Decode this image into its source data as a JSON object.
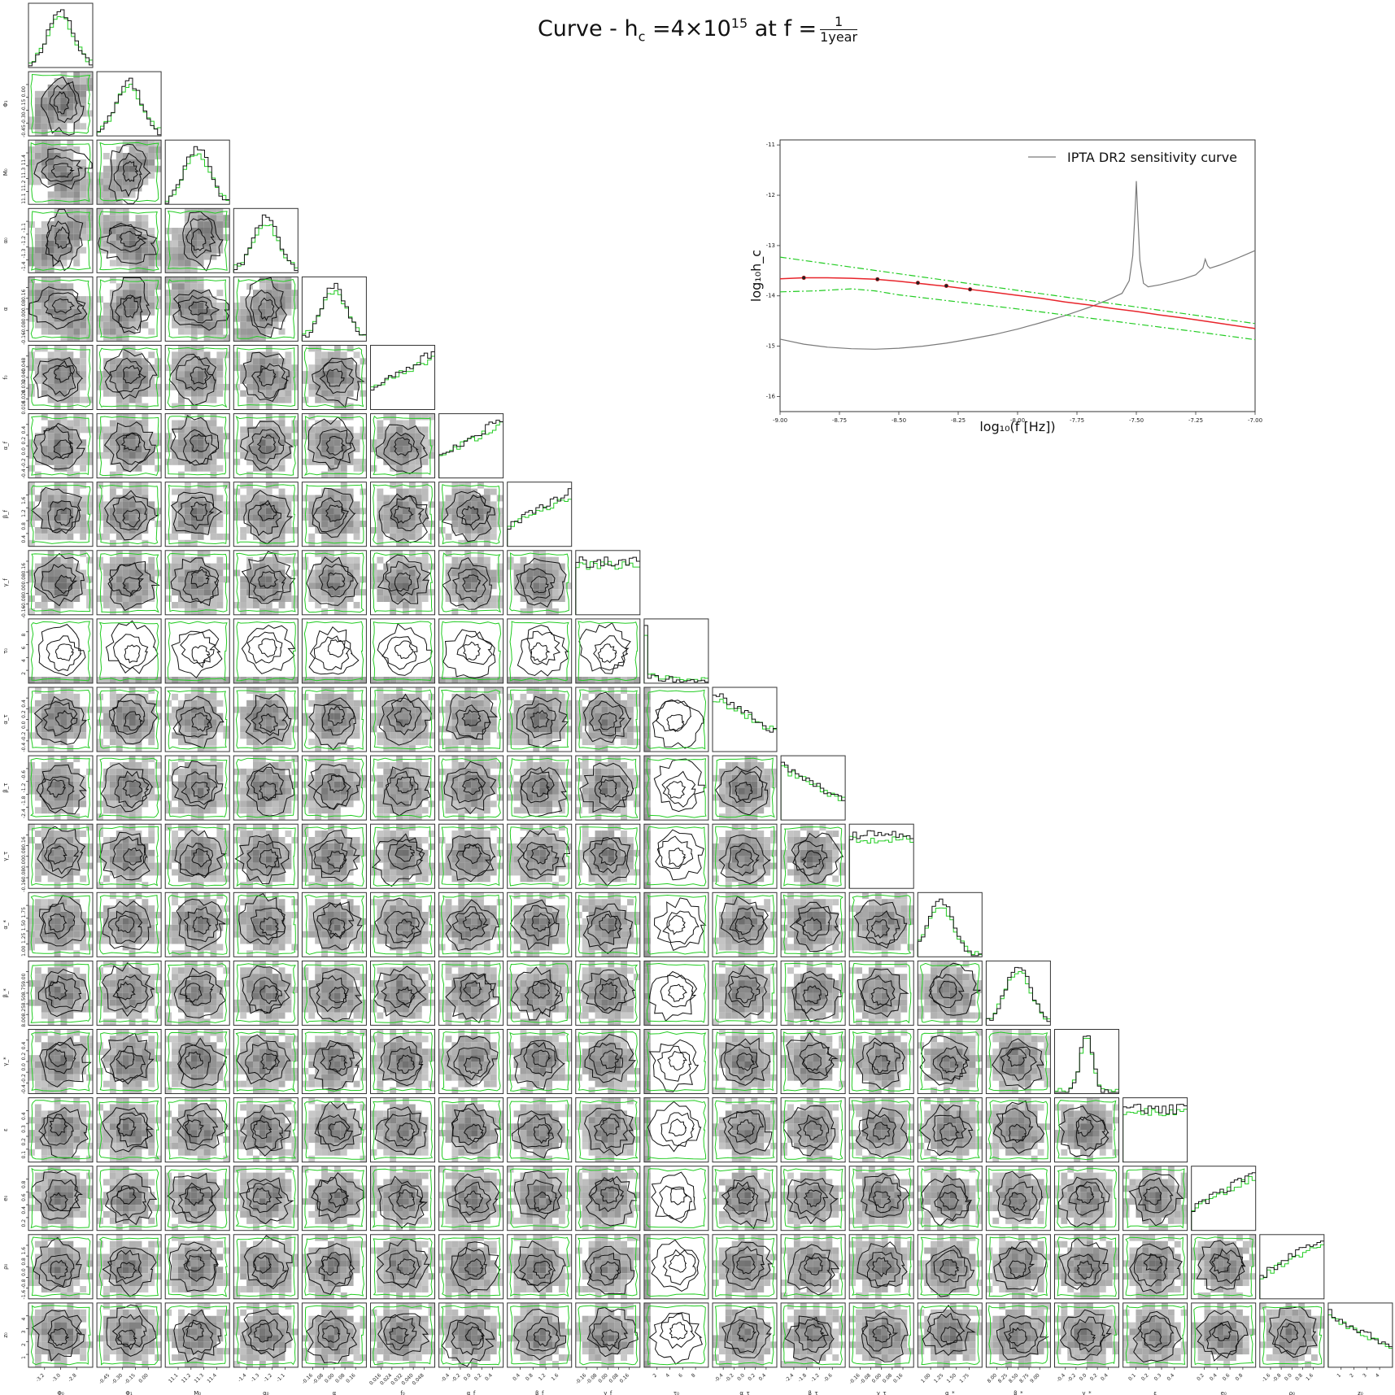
{
  "title": {
    "prefix": "Curve - h",
    "prefix_sub": "c",
    "mid": " =4×10",
    "mid_sup": "15",
    "suffix": " at f =",
    "frac_num": "1",
    "frac_den": "1year"
  },
  "colors": {
    "contour": "#111111",
    "prior": "#22cc22",
    "red_curve": "#e8242b",
    "sensitivity": "#7a7a7a",
    "frame": "#333333"
  },
  "chart_data": [
    {
      "type": "corner",
      "description_of_series": [
        "posterior (black)",
        "prior (green)"
      ],
      "parameters": [
        {
          "label": "Φ₀",
          "ticks": [
            "-3.2",
            "-3.0",
            "-2.8"
          ],
          "range": [
            -3.3,
            -2.7
          ]
        },
        {
          "label": "Φ₁",
          "ticks": [
            "-0.45",
            "-0.30",
            "-0.15",
            "0.00"
          ],
          "range": [
            -0.5,
            0.05
          ]
        },
        {
          "label": "M₀",
          "ticks": [
            "11.1",
            "11.2",
            "11.3",
            "11.4"
          ],
          "range": [
            11.05,
            11.45
          ]
        },
        {
          "label": "α₀",
          "ticks": [
            "-1.4",
            "-1.3",
            "-1.2",
            "-1.1"
          ],
          "range": [
            -1.45,
            -1.05
          ]
        },
        {
          "label": "α",
          "ticks": [
            "-0.16",
            "-0.08",
            "0.00",
            "0.08",
            "0.16"
          ],
          "range": [
            -0.18,
            0.18
          ]
        },
        {
          "label": "f₀",
          "ticks": [
            "0.016",
            "0.024",
            "0.032",
            "0.040",
            "0.048"
          ],
          "range": [
            0.012,
            0.05
          ]
        },
        {
          "label": "α_f",
          "ticks": [
            "-0.4",
            "-0.2",
            "0.0",
            "0.2",
            "0.4"
          ],
          "range": [
            -0.5,
            0.5
          ]
        },
        {
          "label": "β_f",
          "ticks": [
            "0.4",
            "0.8",
            "1.2",
            "1.6"
          ],
          "range": [
            0.0,
            2.0
          ]
        },
        {
          "label": "γ_f",
          "ticks": [
            "-0.16",
            "-0.08",
            "0.00",
            "0.08",
            "0.16"
          ],
          "range": [
            -0.2,
            0.2
          ]
        },
        {
          "label": "τ₀",
          "ticks": [
            "2",
            "4",
            "6",
            "8"
          ],
          "range": [
            0.0,
            10.0
          ]
        },
        {
          "label": "α_τ",
          "ticks": [
            "-0.4",
            "-0.2",
            "0.0",
            "0.2",
            "0.4"
          ],
          "range": [
            -0.5,
            0.5
          ]
        },
        {
          "label": "β_τ",
          "ticks": [
            "-2.4",
            "-1.8",
            "-1.2",
            "-0.6"
          ],
          "range": [
            -3.0,
            0.0
          ]
        },
        {
          "label": "γ_τ",
          "ticks": [
            "-0.16",
            "-0.08",
            "0.00",
            "0.08",
            "0.16"
          ],
          "range": [
            -0.2,
            0.2
          ]
        },
        {
          "label": "α_*",
          "ticks": [
            "1.00",
            "1.25",
            "1.50",
            "1.75"
          ],
          "range": [
            0.9,
            1.9
          ]
        },
        {
          "label": "β_*",
          "ticks": [
            "8.00",
            "8.25",
            "8.50",
            "8.75",
            "9.00"
          ],
          "range": [
            7.9,
            9.1
          ]
        },
        {
          "label": "γ_*",
          "ticks": [
            "-0.4",
            "-0.2",
            "0.0",
            "0.2",
            "0.4"
          ],
          "range": [
            -0.5,
            0.5
          ]
        },
        {
          "label": "ε",
          "ticks": [
            "0.1",
            "0.2",
            "0.3",
            "0.4"
          ],
          "range": [
            0.0,
            0.5
          ]
        },
        {
          "label": "e₀",
          "ticks": [
            "0.2",
            "0.4",
            "0.6",
            "0.8"
          ],
          "range": [
            0.0,
            1.0
          ]
        },
        {
          "label": "ρ₀",
          "ticks": [
            "-1.6",
            "-0.8",
            "0.0",
            "0.8",
            "1.6"
          ],
          "range": [
            -2.0,
            2.0
          ]
        },
        {
          "label": "z₀",
          "ticks": [
            "1",
            "2",
            "3",
            "4"
          ],
          "range": [
            0.5,
            5.0
          ]
        }
      ]
    },
    {
      "type": "line",
      "xlabel": "log₁₀(f [Hz])",
      "ylabel": "log₁₀h_c",
      "xlim": [
        -9.0,
        -7.0
      ],
      "ylim": [
        -16.3,
        -10.9
      ],
      "xticks": [
        "-9.00",
        "-8.75",
        "-8.50",
        "-8.25",
        "-8.00",
        "-7.75",
        "-7.50",
        "-7.25",
        "-7.00"
      ],
      "yticks": [
        "-16",
        "-15",
        "-14",
        "-13",
        "-12",
        "-11"
      ],
      "legend": {
        "label": "IPTA DR2 sensitivity curve",
        "position": "upper right"
      },
      "series": [
        {
          "name": "IPTA DR2 sensitivity curve",
          "color": "#7a7a7a",
          "x": [
            -9.0,
            -8.9,
            -8.8,
            -8.7,
            -8.6,
            -8.5,
            -8.4,
            -8.3,
            -8.2,
            -8.1,
            -8.0,
            -7.9,
            -7.8,
            -7.7,
            -7.62,
            -7.56,
            -7.53,
            -7.515,
            -7.505,
            -7.5,
            -7.495,
            -7.485,
            -7.47,
            -7.45,
            -7.4,
            -7.35,
            -7.3,
            -7.25,
            -7.22,
            -7.21,
            -7.2,
            -7.19,
            -7.15,
            -7.1,
            -7.05,
            -7.0
          ],
          "y": [
            -14.86,
            -14.96,
            -15.02,
            -15.05,
            -15.06,
            -15.04,
            -15.0,
            -14.94,
            -14.86,
            -14.77,
            -14.66,
            -14.53,
            -14.39,
            -14.23,
            -14.08,
            -13.95,
            -13.7,
            -13.2,
            -12.3,
            -11.72,
            -12.3,
            -13.3,
            -13.75,
            -13.82,
            -13.78,
            -13.72,
            -13.66,
            -13.58,
            -13.45,
            -13.27,
            -13.4,
            -13.45,
            -13.39,
            -13.3,
            -13.2,
            -13.1
          ]
        },
        {
          "name": "",
          "color": "#e8242b",
          "x": [
            -9.0,
            -8.9,
            -8.8,
            -8.7,
            -8.6,
            -8.5,
            -8.4,
            -8.3,
            -8.2,
            -8.1,
            -8.0,
            -7.9,
            -7.8,
            -7.7,
            -7.6,
            -7.5,
            -7.4,
            -7.3,
            -7.2,
            -7.1,
            -7.0
          ],
          "y": [
            -13.66,
            -13.64,
            -13.64,
            -13.65,
            -13.67,
            -13.71,
            -13.76,
            -13.81,
            -13.87,
            -13.93,
            -13.99,
            -14.05,
            -14.12,
            -14.18,
            -14.25,
            -14.31,
            -14.38,
            -14.44,
            -14.51,
            -14.58,
            -14.65
          ]
        },
        {
          "name": "",
          "color": "#22cc22",
          "style": "dashdot",
          "x": [
            -9.0,
            -7.0
          ],
          "y": [
            -13.23,
            -14.55
          ]
        },
        {
          "name": "",
          "color": "#22cc22",
          "style": "dashdot",
          "x": [
            -9.0,
            -8.85,
            -8.7,
            -8.6,
            -8.5,
            -8.25,
            -8.0,
            -7.75,
            -7.5,
            -7.25,
            -7.0
          ],
          "y": [
            -13.92,
            -13.9,
            -13.86,
            -13.9,
            -13.98,
            -14.12,
            -14.26,
            -14.41,
            -14.56,
            -14.71,
            -14.87
          ]
        }
      ],
      "points": {
        "x": [
          -8.9,
          -8.59,
          -8.42,
          -8.3,
          -8.2
        ],
        "y": [
          -13.64,
          -13.67,
          -13.74,
          -13.8,
          -13.87
        ]
      }
    }
  ]
}
